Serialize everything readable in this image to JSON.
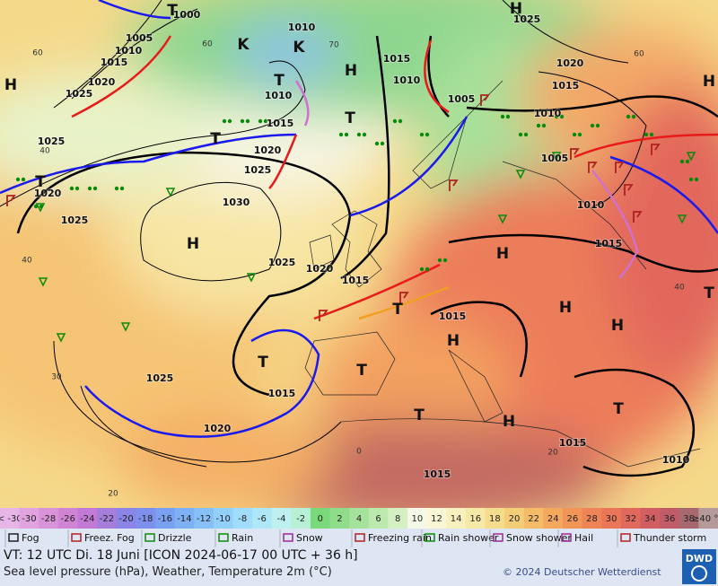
{
  "map": {
    "isobar_labels": [
      1000,
      1005,
      1010,
      1015,
      1020,
      1025,
      1010,
      1015,
      1010,
      1005,
      1010,
      1015,
      1020,
      1025,
      1025,
      1020,
      1025,
      1030,
      1025,
      1020,
      1015,
      1015,
      1015,
      1025,
      1020,
      1025,
      1020,
      1015,
      1010,
      1005,
      1010,
      1015,
      1015,
      1010,
      1015
    ],
    "centers": [
      "H",
      "T",
      "H",
      "K",
      "H",
      "T",
      "T",
      "T",
      "T",
      "H",
      "H",
      "T",
      "H",
      "H",
      "H",
      "T",
      "T",
      "T",
      "H",
      "T",
      "H",
      "T",
      "K"
    ],
    "temperature_labels": [
      60,
      70,
      60,
      60,
      40,
      40,
      30,
      20,
      40,
      20,
      0
    ]
  },
  "scale": [
    {
      "label": "< -30",
      "color": "#e7b6e7"
    },
    {
      "label": "-30",
      "color": "#e0a3e0"
    },
    {
      "label": "-28",
      "color": "#d993d9"
    },
    {
      "label": "-26",
      "color": "#cf85d4"
    },
    {
      "label": "-24",
      "color": "#c27ad6"
    },
    {
      "label": "-22",
      "color": "#a57ddb"
    },
    {
      "label": "-20",
      "color": "#8a85e6"
    },
    {
      "label": "-18",
      "color": "#7d90ee"
    },
    {
      "label": "-16",
      "color": "#7aa0f2"
    },
    {
      "label": "-14",
      "color": "#7db0f5"
    },
    {
      "label": "-12",
      "color": "#86c0f7"
    },
    {
      "label": "-10",
      "color": "#92cffa"
    },
    {
      "label": "-8",
      "color": "#a0dcfb"
    },
    {
      "label": "-6",
      "color": "#aee7f7"
    },
    {
      "label": "-4",
      "color": "#bdf0ef"
    },
    {
      "label": "-2",
      "color": "#b8f0d6"
    },
    {
      "label": "0",
      "color": "#7ad97a"
    },
    {
      "label": "2",
      "color": "#8fdd8a"
    },
    {
      "label": "4",
      "color": "#a5e39c"
    },
    {
      "label": "6",
      "color": "#bce9ae"
    },
    {
      "label": "8",
      "color": "#d5f0c3"
    },
    {
      "label": "10",
      "color": "#f4f8e6"
    },
    {
      "label": "12",
      "color": "#fbf7d6"
    },
    {
      "label": "14",
      "color": "#f8f1bd"
    },
    {
      "label": "16",
      "color": "#f6e9a6"
    },
    {
      "label": "18",
      "color": "#f5dc8c"
    },
    {
      "label": "20",
      "color": "#f5cd78"
    },
    {
      "label": "22",
      "color": "#f5bb68"
    },
    {
      "label": "24",
      "color": "#f4a85e"
    },
    {
      "label": "26",
      "color": "#f29658"
    },
    {
      "label": "28",
      "color": "#ef8556"
    },
    {
      "label": "30",
      "color": "#ea7658"
    },
    {
      "label": "32",
      "color": "#e0695c"
    },
    {
      "label": "34",
      "color": "#d15f62"
    },
    {
      "label": "36",
      "color": "#bf5c68"
    },
    {
      "label": "38",
      "color": "#a86870"
    },
    {
      "label": "≥40 °C",
      "color": "#b69a9a"
    }
  ],
  "legend": [
    "Fog",
    "Freez. Fog",
    "Drizzle",
    "Rain",
    "Snow",
    "Freezing rain",
    "Rain shower",
    "Snow shower",
    "Hail",
    "Thunder storm"
  ],
  "footer": {
    "valid_time": "VT: 12 UTC Di.   18 Juni [ICON 2024-06-17   00 UTC + 36 h]",
    "description": "Sea level pressure (hPa), Weather, Temperature 2m (°C)",
    "copyright": "© 2024 Deutscher Wetterdienst",
    "logo": "DWD"
  }
}
